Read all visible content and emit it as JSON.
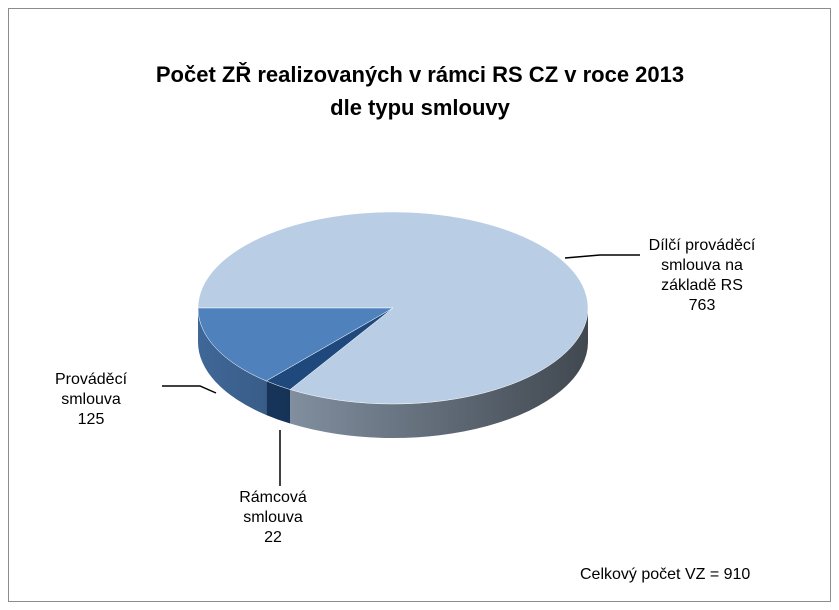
{
  "chart_data": {
    "type": "pie",
    "title": "Počet ZŘ realizovaných v rámci RS CZ v roce 2013 dle typu smlouvy",
    "categories": [
      "Dílčí prováděcí smlouva na základě RS",
      "Rámcová smlouva",
      "Prováděcí smlouva"
    ],
    "values": [
      763,
      22,
      125
    ],
    "colors": [
      "#b9cde5",
      "#1f497d",
      "#4f81bd"
    ],
    "annotation": "Celkový počet VZ = 910"
  }
}
